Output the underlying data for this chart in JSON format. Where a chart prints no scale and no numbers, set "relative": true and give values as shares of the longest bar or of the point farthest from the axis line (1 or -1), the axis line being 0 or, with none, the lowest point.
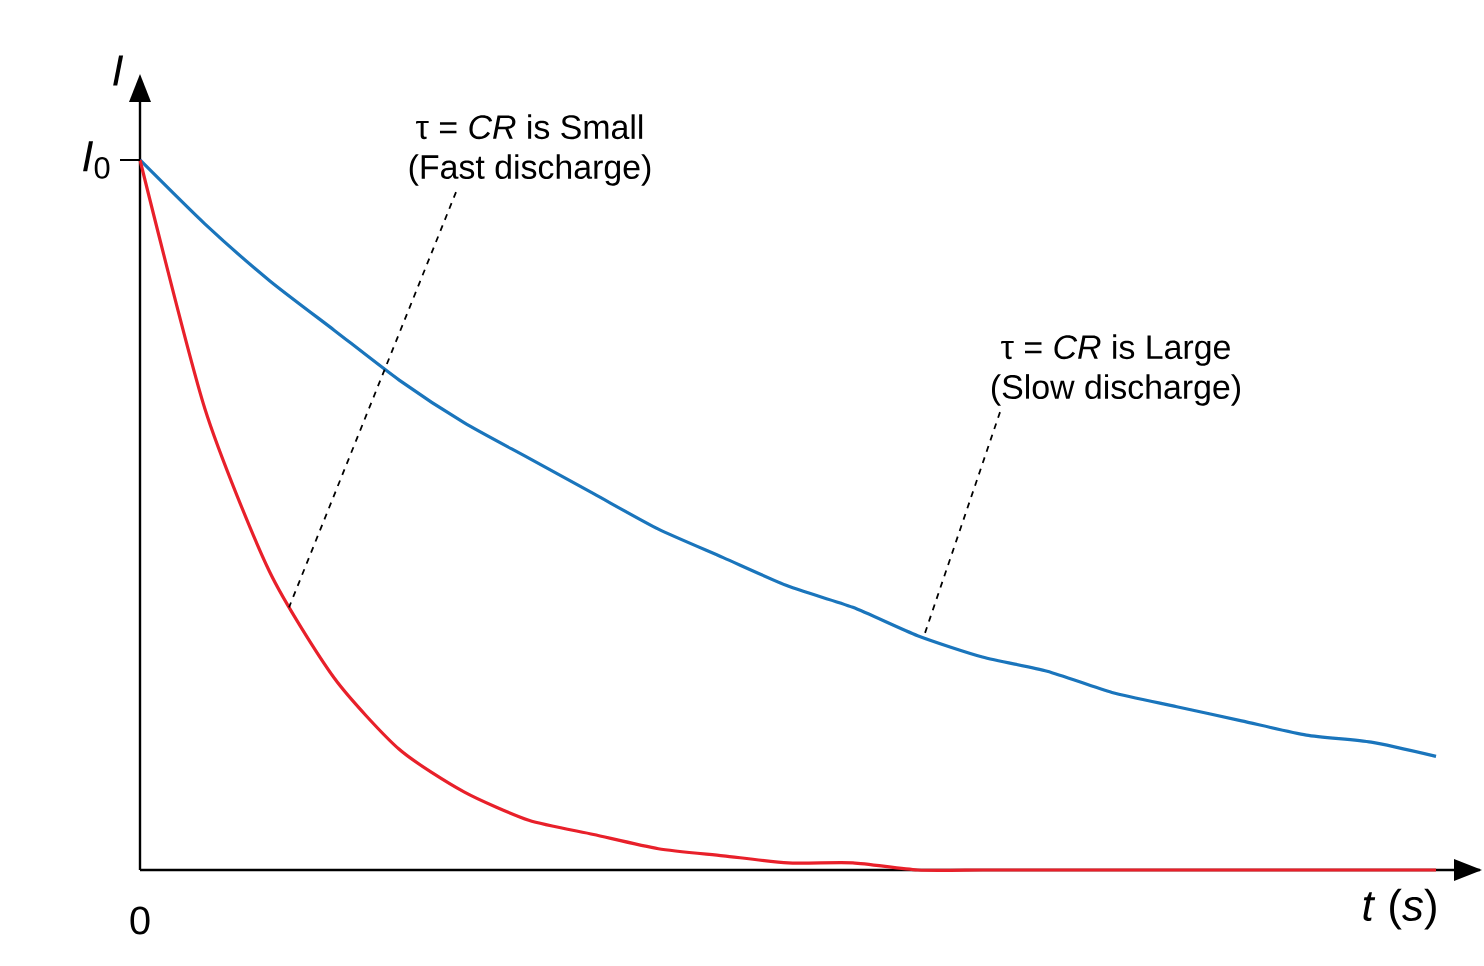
{
  "chart_data": {
    "type": "line",
    "relative": true,
    "xlabel": "*t* (*s*)",
    "ylabel": "*I*",
    "categories": [
      null,
      null,
      null,
      null,
      null,
      null,
      null,
      null,
      null,
      null,
      null,
      null,
      null,
      null,
      null,
      null,
      null,
      null,
      null,
      null,
      null
    ],
    "series": [
      {
        "color": "#1a75bc",
        "values": [
          1,
          0.91,
          0.83,
          0.76,
          0.69,
          0.63,
          0.58,
          0.53,
          0.48,
          0.44,
          0.4,
          0.37,
          0.33,
          0.3,
          0.28,
          0.25,
          0.23,
          0.21,
          0.19,
          0.18,
          0.16
        ]
      },
      {
        "color": "#e8202a",
        "values": [
          1,
          0.65,
          0.42,
          0.27,
          0.17,
          0.11,
          0.07,
          0.05,
          0.03,
          0.02,
          0.01,
          0.01,
          0,
          0,
          0,
          0,
          0,
          0,
          0,
          0,
          0
        ]
      }
    ],
    "annotations": [
      "*I*$_{0}$",
      "0",
      "τ = *CR* is Small",
      "(Fast discharge)",
      "τ = *CR* is Large",
      "(Slow discharge)"
    ],
    "line_style": "solid",
    "marker": "none"
  }
}
